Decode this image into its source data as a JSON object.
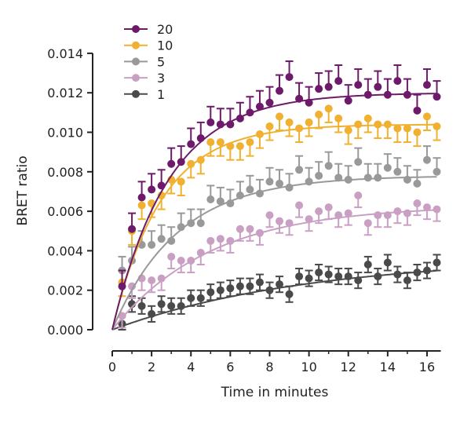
{
  "chart_data": {
    "type": "scatter",
    "title": "",
    "xlabel": "Time in minutes",
    "ylabel": "BRET ratio",
    "xlim": [
      0,
      16.5
    ],
    "ylim": [
      0,
      0.014
    ],
    "xticks": [
      "0",
      "2",
      "4",
      "6",
      "8",
      "10",
      "12",
      "14",
      "16"
    ],
    "xtick_values": [
      0,
      2,
      4,
      6,
      8,
      10,
      12,
      14,
      16
    ],
    "yticks": [
      "0.000",
      "0.002",
      "0.004",
      "0.006",
      "0.008",
      "0.010",
      "0.012",
      "0.014"
    ],
    "ytick_values": [
      0,
      0.002,
      0.004,
      0.006,
      0.008,
      0.01,
      0.012,
      0.014
    ],
    "grid": false,
    "legend_position": "top-left",
    "x": [
      0.5,
      1,
      1.5,
      2,
      2.5,
      3,
      3.5,
      4,
      4.5,
      5,
      5.5,
      6,
      6.5,
      7,
      7.5,
      8,
      8.5,
      9,
      9.5,
      10,
      10.5,
      11,
      11.5,
      12,
      12.5,
      13,
      13.5,
      14,
      14.5,
      15,
      15.5,
      16,
      16.5
    ],
    "series": [
      {
        "name": "20",
        "color": "#6e1a6b",
        "error": 0.0008,
        "error_dir": "up",
        "fit": {
          "ymax": 0.012,
          "k": 0.35
        },
        "values": [
          0.0022,
          0.0051,
          0.0067,
          0.0071,
          0.0073,
          0.0084,
          0.0085,
          0.0094,
          0.0097,
          0.0105,
          0.0104,
          0.0104,
          0.0107,
          0.011,
          0.0113,
          0.0115,
          0.0121,
          0.0128,
          0.0117,
          0.0115,
          0.0122,
          0.0123,
          0.0126,
          0.0116,
          0.0124,
          0.0119,
          0.0123,
          0.0119,
          0.0126,
          0.0119,
          0.0111,
          0.0124,
          0.0118
        ]
      },
      {
        "name": "10",
        "color": "#f0b030",
        "error": 0.0007,
        "error_dir": "down",
        "fit": {
          "ymax": 0.0104,
          "k": 0.4
        },
        "values": [
          0.0024,
          0.005,
          0.0063,
          0.0064,
          0.0068,
          0.0076,
          0.0075,
          0.0084,
          0.0086,
          0.0095,
          0.0095,
          0.0093,
          0.0093,
          0.0095,
          0.0099,
          0.0103,
          0.0108,
          0.0105,
          0.0102,
          0.0105,
          0.0109,
          0.0112,
          0.0107,
          0.0101,
          0.0104,
          0.0107,
          0.0104,
          0.0104,
          0.0102,
          0.0102,
          0.01,
          0.0108,
          0.0103
        ]
      },
      {
        "name": "5",
        "color": "#999999",
        "error": 0.0007,
        "error_dir": "up",
        "fit": {
          "ymax": 0.0078,
          "k": 0.3
        },
        "values": [
          0.003,
          0.0035,
          0.0043,
          0.0043,
          0.0046,
          0.0045,
          0.0052,
          0.0054,
          0.0054,
          0.0066,
          0.0065,
          0.0064,
          0.0068,
          0.0071,
          0.0069,
          0.0075,
          0.0074,
          0.0072,
          0.0081,
          0.0075,
          0.0078,
          0.0083,
          0.0077,
          0.0076,
          0.0085,
          0.0077,
          0.0077,
          0.0082,
          0.008,
          0.0076,
          0.0074,
          0.0086,
          0.008
        ]
      },
      {
        "name": "3",
        "color": "#c9a0c4",
        "error": 0.0006,
        "error_dir": "down",
        "fit": {
          "ymax": 0.0063,
          "k": 0.2
        },
        "values": [
          0.0007,
          0.0022,
          0.0026,
          0.0025,
          0.0026,
          0.0037,
          0.0035,
          0.0035,
          0.0039,
          0.0045,
          0.0046,
          0.0045,
          0.0051,
          0.0051,
          0.0049,
          0.0058,
          0.0055,
          0.0054,
          0.0063,
          0.0056,
          0.006,
          0.0062,
          0.0058,
          0.0059,
          0.0068,
          0.0054,
          0.0058,
          0.0058,
          0.006,
          0.0059,
          0.0064,
          0.0062,
          0.0061
        ]
      },
      {
        "name": "1",
        "color": "#4a4a4a",
        "error": 0.0004,
        "error_dir": "both",
        "fit": {
          "ymax": 0.0037,
          "k": 0.1
        },
        "values": [
          0.0003,
          0.0013,
          0.0012,
          0.0008,
          0.0013,
          0.0012,
          0.0012,
          0.0016,
          0.0016,
          0.0019,
          0.002,
          0.0021,
          0.0022,
          0.0022,
          0.0024,
          0.002,
          0.0023,
          0.0018,
          0.0027,
          0.0026,
          0.0029,
          0.0028,
          0.0027,
          0.0027,
          0.0025,
          0.0033,
          0.0027,
          0.0034,
          0.0028,
          0.0025,
          0.0029,
          0.003,
          0.0034
        ]
      }
    ]
  }
}
